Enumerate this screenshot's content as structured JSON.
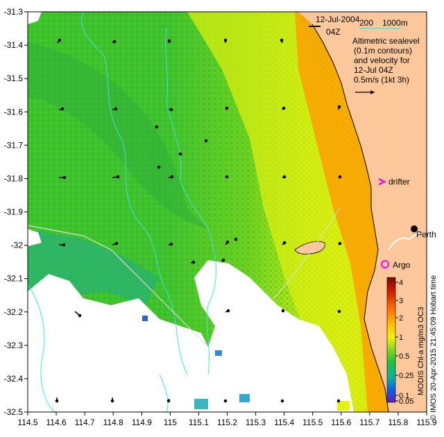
{
  "map": {
    "date": "12-Jul-2004",
    "time": "04Z",
    "isobath_labels": {
      "a": "200",
      "b": "1000m"
    },
    "legend_lines": [
      "Altimetric sealevel",
      "(0.1m contours)",
      "and velocity for",
      "12-Jul 04Z",
      "0.5m/s (1kt 3h)"
    ],
    "drifter_label": "drifter",
    "argo_label": "Argo",
    "city_label": "Perth",
    "colorbar_title": "MODIS Chl-a mg/m3 OC3",
    "credit": "© IMOS 20-Apr-2015 21:45:09 Hobart time",
    "colorbar_ticks": [
      "4",
      "3",
      "2",
      "1",
      "0.5",
      "0.25",
      "0.1",
      "0.05"
    ],
    "x_ticks": [
      "114.5",
      "114.6",
      "114.7",
      "114.8",
      "114.9",
      "115",
      "115.1",
      "115.2",
      "115.3",
      "115.4",
      "115.5",
      "115.6",
      "115.7",
      "115.8",
      "115.9"
    ],
    "y_ticks": [
      "-31.3",
      "-31.4",
      "-31.5",
      "-31.6",
      "-31.7",
      "-31.8",
      "-31.9",
      "-32",
      "-32.1",
      "-32.2",
      "-32.3",
      "-32.4",
      "-32.5"
    ],
    "colors": {
      "land": "#fcc79b",
      "cloud": "#ffffff",
      "contour": "#40e0e8",
      "drifter": "#ff00ff",
      "argo": "#ff00ff"
    }
  }
}
